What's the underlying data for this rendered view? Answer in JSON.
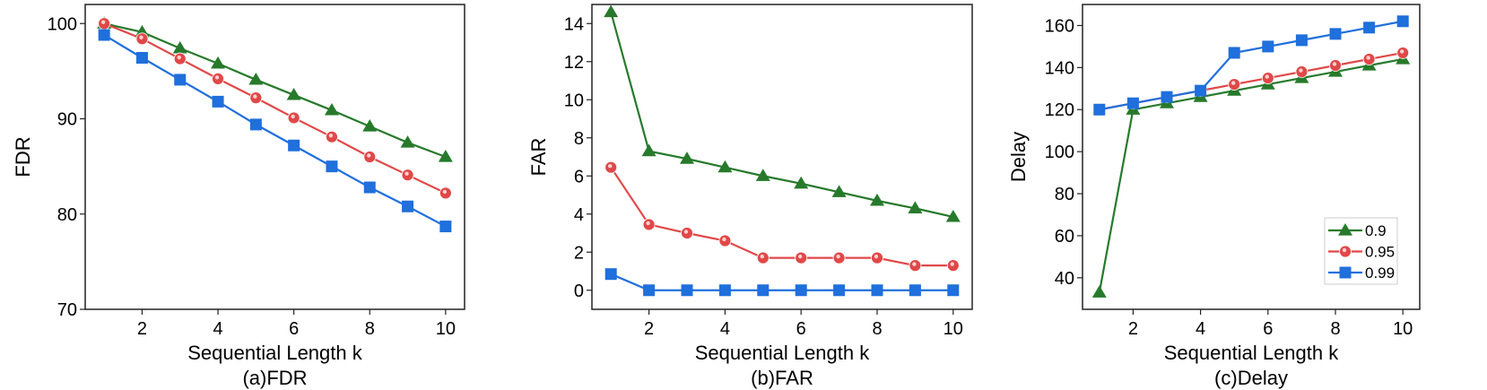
{
  "colors": {
    "0.9": "#277a2b",
    "0.95": "#e04848",
    "0.99": "#1f6fdc"
  },
  "chart_data": [
    {
      "type": "line",
      "title": "(a)FDR",
      "xlabel": "Sequential Length k",
      "ylabel": "FDR",
      "x": [
        1,
        2,
        3,
        4,
        5,
        6,
        7,
        8,
        9,
        10
      ],
      "xlim": [
        0.5,
        10.5
      ],
      "ylim": [
        70,
        102
      ],
      "xticks": [
        2,
        4,
        6,
        8,
        10
      ],
      "yticks": [
        70,
        80,
        90,
        100
      ],
      "series": [
        {
          "name": "0.9",
          "marker": "triangle",
          "values": [
            100,
            99.1,
            97.4,
            95.8,
            94.1,
            92.5,
            90.9,
            89.2,
            87.5,
            86.0
          ]
        },
        {
          "name": "0.95",
          "marker": "circle",
          "values": [
            100,
            98.4,
            96.3,
            94.2,
            92.2,
            90.1,
            88.1,
            86.0,
            84.1,
            82.2
          ]
        },
        {
          "name": "0.99",
          "marker": "square",
          "values": [
            98.8,
            96.4,
            94.1,
            91.8,
            89.4,
            87.2,
            85.0,
            82.8,
            80.8,
            78.7
          ]
        }
      ],
      "legend": null
    },
    {
      "type": "line",
      "title": "(b)FAR",
      "xlabel": "Sequential Length k",
      "ylabel": "FAR",
      "x": [
        1,
        2,
        3,
        4,
        5,
        6,
        7,
        8,
        9,
        10
      ],
      "xlim": [
        0.5,
        10.5
      ],
      "ylim": [
        -1,
        15
      ],
      "xticks": [
        2,
        4,
        6,
        8,
        10
      ],
      "yticks": [
        0,
        2,
        4,
        6,
        8,
        10,
        12,
        14
      ],
      "series": [
        {
          "name": "0.9",
          "marker": "triangle",
          "values": [
            14.6,
            7.3,
            6.9,
            6.45,
            6.0,
            5.6,
            5.15,
            4.7,
            4.3,
            3.85
          ]
        },
        {
          "name": "0.95",
          "marker": "circle",
          "values": [
            6.45,
            3.45,
            3.0,
            2.6,
            1.7,
            1.7,
            1.7,
            1.7,
            1.3,
            1.3
          ]
        },
        {
          "name": "0.99",
          "marker": "square",
          "values": [
            0.85,
            0,
            0,
            0,
            0,
            0,
            0,
            0,
            0,
            0
          ]
        }
      ],
      "legend": null
    },
    {
      "type": "line",
      "title": "(c)Delay",
      "xlabel": "Sequential Length k",
      "ylabel": "Delay",
      "x": [
        1,
        2,
        3,
        4,
        5,
        6,
        7,
        8,
        9,
        10
      ],
      "xlim": [
        0.5,
        10.5
      ],
      "ylim": [
        25,
        170
      ],
      "xticks": [
        2,
        4,
        6,
        8,
        10
      ],
      "yticks": [
        40,
        60,
        80,
        100,
        120,
        140,
        160
      ],
      "series": [
        {
          "name": "0.9",
          "marker": "triangle",
          "values": [
            33,
            120,
            123,
            126,
            129,
            132,
            135,
            138,
            141,
            144
          ]
        },
        {
          "name": "0.95",
          "marker": "circle",
          "values": [
            120,
            123,
            126,
            129,
            132,
            135,
            138,
            141,
            144,
            147
          ]
        },
        {
          "name": "0.99",
          "marker": "square",
          "values": [
            120,
            123,
            126,
            129,
            147,
            150,
            153,
            156,
            159,
            162
          ]
        }
      ],
      "legend": "lower-right"
    }
  ]
}
